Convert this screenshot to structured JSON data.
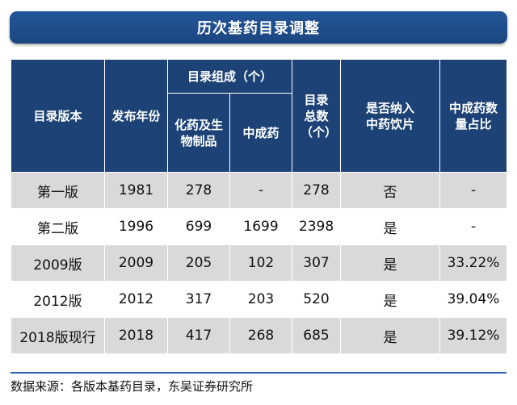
{
  "title": "历次基药目录调整",
  "headers": {
    "version": "目录版本",
    "year": "发布年份",
    "composition_group": "目录组成（个）",
    "chem_bio": "化药及生物制品",
    "tcm": "中成药",
    "total": "目录总数（个）",
    "decoction": "是否纳入中药饮片",
    "tcm_ratio": "中成药数量占比"
  },
  "rows": [
    {
      "version": "第一版",
      "year": "1981",
      "chem_bio": "278",
      "tcm": "-",
      "total": "278",
      "decoction": "否",
      "tcm_ratio": "-"
    },
    {
      "version": "第二版",
      "year": "1996",
      "chem_bio": "699",
      "tcm": "1699",
      "total": "2398",
      "decoction": "是",
      "tcm_ratio": "-"
    },
    {
      "version": "2009版",
      "year": "2009",
      "chem_bio": "205",
      "tcm": "102",
      "total": "307",
      "decoction": "是",
      "tcm_ratio": "33.22%"
    },
    {
      "version": "2012版",
      "year": "2012",
      "chem_bio": "317",
      "tcm": "203",
      "total": "520",
      "decoction": "是",
      "tcm_ratio": "39.04%"
    },
    {
      "version": "2018版现行",
      "year": "2018",
      "chem_bio": "417",
      "tcm": "268",
      "total": "685",
      "decoction": "是",
      "tcm_ratio": "39.12%"
    }
  ],
  "source": "数据来源：各版本基药目录，东吴证券研究所",
  "colors": {
    "header_bg": "#1d4276",
    "title_bg": "#1f4e8c",
    "stripe_bg": "#d9d9d9",
    "footer_line": "#2b63a8"
  }
}
